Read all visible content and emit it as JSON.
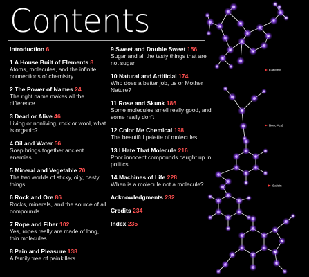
{
  "page": {
    "title": "Contents"
  },
  "toc": {
    "left": [
      {
        "number": "",
        "title": "Introduction",
        "page": "6",
        "desc": ""
      },
      {
        "number": "1",
        "title": "A House Built of Elements",
        "page": "8",
        "desc": "Atoms, molecules, and the infinite connections of chemistry"
      },
      {
        "number": "2",
        "title": "The Power of Names",
        "page": "24",
        "desc": "The right name makes all the difference"
      },
      {
        "number": "3",
        "title": "Dead or Alive",
        "page": "46",
        "desc": "Living or nonliving, rock or wool, what is organic?"
      },
      {
        "number": "4",
        "title": "Oil and Water",
        "page": "56",
        "desc": "Soap brings together ancient enemies"
      },
      {
        "number": "5",
        "title": "Mineral and Vegetable",
        "page": "70",
        "desc": "The two worlds of sticky, oily, pasty things"
      },
      {
        "number": "6",
        "title": "Rock and Ore",
        "page": "86",
        "desc": "Rocks, minerals, and the source of all compounds"
      },
      {
        "number": "7",
        "title": "Rope and Fiber",
        "page": "102",
        "desc": "Yes, ropes really are made of long, thin molecules"
      },
      {
        "number": "8",
        "title": "Pain and Pleasure",
        "page": "138",
        "desc": "A family tree of painkillers"
      }
    ],
    "right": [
      {
        "number": "9",
        "title": "Sweet and Double Sweet",
        "page": "156",
        "desc": "Sugar and all the tasty things that are not sugar"
      },
      {
        "number": "10",
        "title": "Natural and Artificial",
        "page": "174",
        "desc": "Who does a better job, us or Mother Nature?"
      },
      {
        "number": "11",
        "title": "Rose and Skunk",
        "page": "186",
        "desc": "Some molecules smell really good, and some really don't"
      },
      {
        "number": "12",
        "title": "Color Me Chemical",
        "page": "198",
        "desc": "The beautiful palette of molecules"
      },
      {
        "number": "13",
        "title": "I Hate That Molecule",
        "page": "216",
        "desc": "Poor innocent compounds caught up in politics"
      },
      {
        "number": "14",
        "title": "Machines of Life",
        "page": "228",
        "desc": "When is a molecule not a molecule?"
      },
      {
        "number": "",
        "title": "Acknowledgments",
        "page": "232",
        "desc": ""
      },
      {
        "number": "",
        "title": "Credits",
        "page": "234",
        "desc": ""
      },
      {
        "number": "",
        "title": "Index",
        "page": "235",
        "desc": ""
      }
    ]
  },
  "molecules": {
    "caffeine": "Caffeine",
    "boric_acid": "Boric Acid",
    "salicin": "Salicin"
  },
  "colors": {
    "page_number": "#ff5050",
    "atom_glow": "#8a3cff",
    "label_arrow": "#ff3b3b"
  }
}
